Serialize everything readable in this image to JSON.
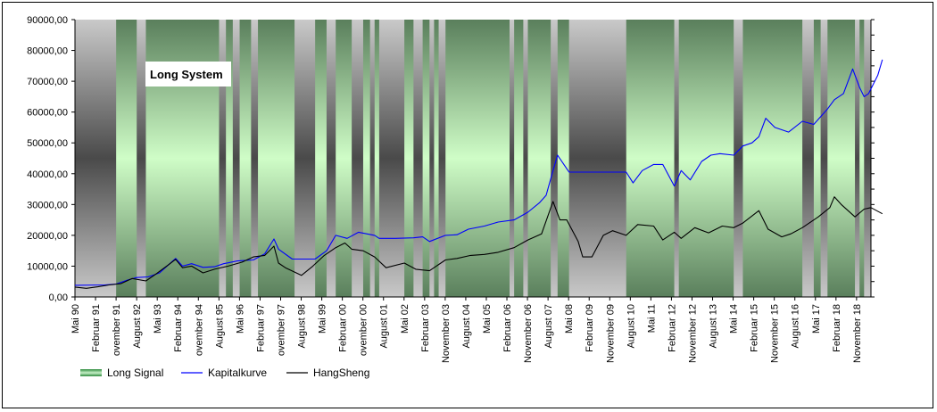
{
  "chart_data": {
    "type": "line",
    "title": "Long System",
    "ylim": [
      0,
      90000
    ],
    "y_ticks": [
      "0,00",
      "10000,00",
      "20000,00",
      "30000,00",
      "40000,00",
      "50000,00",
      "60000,00",
      "70000,00",
      "80000,00",
      "90000,00"
    ],
    "x_range": [
      "1990-05",
      "2019-05"
    ],
    "x_tick_labels": [
      "Mai 90",
      "Februar 91",
      "ovember 91",
      "August 92",
      "Mai 93",
      "Februar 94",
      "ovember 94",
      "August 95",
      "Mai 96",
      "Februar 97",
      "ovember 97",
      "August 98",
      "Mai 99",
      "Februar 00",
      "ovember 00",
      "August 01",
      "Mai 02",
      "Februar 03",
      "November 03",
      "August 04",
      "Mai 05",
      "Februar 06",
      "November 06",
      "August 07",
      "Mai 08",
      "Februar 09",
      "November 09",
      "August 10",
      "Mai 11",
      "Februar 12",
      "November 12",
      "August 13",
      "Mai 14",
      "Februar 15",
      "November 15",
      "August 16",
      "Mai 17",
      "Februar 18",
      "November 18"
    ],
    "legend": [
      "Long Signal",
      "Kapitalkurve",
      "HangSheng"
    ],
    "legend_position": "bottom-left",
    "colors": {
      "kapital": "#0000FF",
      "hang": "#000000",
      "signal": "#5fa86a"
    },
    "off_periods": [
      [
        "1990-05",
        "1991-11"
      ],
      [
        "1992-08",
        "1992-12"
      ],
      [
        "1995-08",
        "1995-11"
      ],
      [
        "1996-02",
        "1996-05"
      ],
      [
        "1996-10",
        "1997-01"
      ],
      [
        "1998-05",
        "1999-02"
      ],
      [
        "1999-07",
        "1999-11"
      ],
      [
        "2000-06",
        "2000-11"
      ],
      [
        "2001-02",
        "2001-04"
      ],
      [
        "2001-06",
        "2002-05"
      ],
      [
        "2002-09",
        "2003-01"
      ],
      [
        "2003-04",
        "2003-06"
      ],
      [
        "2003-08",
        "2003-11"
      ],
      [
        "2006-03",
        "2006-05"
      ],
      [
        "2006-09",
        "2006-11"
      ],
      [
        "2007-09",
        "2007-12"
      ],
      [
        "2008-05",
        "2010-06"
      ],
      [
        "2012-03",
        "2012-05"
      ],
      [
        "2014-05",
        "2014-09"
      ],
      [
        "2016-11",
        "2017-04"
      ],
      [
        "2017-07",
        "2017-10"
      ],
      [
        "2018-10",
        "2018-12"
      ],
      [
        "2019-02",
        "2019-05"
      ]
    ],
    "series": [
      {
        "name": "Kapitalkurve",
        "points": [
          [
            "1990-05",
            3800
          ],
          [
            "1991-06",
            3900
          ],
          [
            "1991-11",
            4200
          ],
          [
            "1992-04",
            5500
          ],
          [
            "1992-08",
            6300
          ],
          [
            "1993-01",
            6500
          ],
          [
            "1993-06",
            7800
          ],
          [
            "1993-10",
            10500
          ],
          [
            "1994-01",
            12500
          ],
          [
            "1994-04",
            10000
          ],
          [
            "1994-08",
            10800
          ],
          [
            "1995-01",
            9600
          ],
          [
            "1995-06",
            9800
          ],
          [
            "1995-10",
            10800
          ],
          [
            "1996-04",
            11700
          ],
          [
            "1996-11",
            12000
          ],
          [
            "1997-04",
            14000
          ],
          [
            "1997-08",
            18800
          ],
          [
            "1997-10",
            15500
          ],
          [
            "1998-04",
            12300
          ],
          [
            "1999-02",
            12300
          ],
          [
            "1999-07",
            15000
          ],
          [
            "1999-11",
            20000
          ],
          [
            "2000-04",
            19000
          ],
          [
            "2000-09",
            21000
          ],
          [
            "2001-04",
            20000
          ],
          [
            "2001-06",
            19000
          ],
          [
            "2002-01",
            19000
          ],
          [
            "2002-09",
            19200
          ],
          [
            "2003-01",
            19500
          ],
          [
            "2003-04",
            18000
          ],
          [
            "2003-11",
            20000
          ],
          [
            "2004-04",
            20200
          ],
          [
            "2004-09",
            22000
          ],
          [
            "2005-04",
            23000
          ],
          [
            "2005-10",
            24300
          ],
          [
            "2006-05",
            25000
          ],
          [
            "2006-11",
            27500
          ],
          [
            "2007-04",
            30500
          ],
          [
            "2007-07",
            33000
          ],
          [
            "2007-10",
            41000
          ],
          [
            "2007-12",
            46000
          ],
          [
            "2008-05",
            40500
          ],
          [
            "2010-06",
            40500
          ],
          [
            "2010-09",
            37000
          ],
          [
            "2011-01",
            41000
          ],
          [
            "2011-06",
            43000
          ],
          [
            "2011-10",
            43000
          ],
          [
            "2012-03",
            36000
          ],
          [
            "2012-06",
            41000
          ],
          [
            "2012-10",
            38000
          ],
          [
            "2013-03",
            44000
          ],
          [
            "2013-07",
            46000
          ],
          [
            "2013-11",
            46500
          ],
          [
            "2014-05",
            46000
          ],
          [
            "2014-09",
            49000
          ],
          [
            "2015-01",
            50000
          ],
          [
            "2015-04",
            52000
          ],
          [
            "2015-07",
            58000
          ],
          [
            "2015-11",
            55000
          ],
          [
            "2016-05",
            53500
          ],
          [
            "2016-11",
            57000
          ],
          [
            "2017-04",
            56000
          ],
          [
            "2017-10",
            61000
          ],
          [
            "2018-01",
            64000
          ],
          [
            "2018-05",
            66000
          ],
          [
            "2018-09",
            74000
          ],
          [
            "2018-12",
            68000
          ],
          [
            "2019-02",
            65000
          ],
          [
            "2019-04",
            66000
          ],
          [
            "2019-08",
            72000
          ],
          [
            "2019-10",
            77000
          ]
        ]
      },
      {
        "name": "HangSheng",
        "points": [
          [
            "1990-05",
            3200
          ],
          [
            "1990-10",
            2800
          ],
          [
            "1991-03",
            3300
          ],
          [
            "1991-08",
            3900
          ],
          [
            "1992-01",
            4300
          ],
          [
            "1992-06",
            6000
          ],
          [
            "1992-12",
            5200
          ],
          [
            "1993-04",
            7200
          ],
          [
            "1993-10",
            10500
          ],
          [
            "1994-01",
            12200
          ],
          [
            "1994-04",
            9500
          ],
          [
            "1994-08",
            10000
          ],
          [
            "1995-01",
            7800
          ],
          [
            "1995-06",
            9000
          ],
          [
            "1995-12",
            10000
          ],
          [
            "1996-06",
            11300
          ],
          [
            "1996-11",
            13000
          ],
          [
            "1997-04",
            13500
          ],
          [
            "1997-08",
            16500
          ],
          [
            "1997-10",
            11000
          ],
          [
            "1998-01",
            9500
          ],
          [
            "1998-08",
            7000
          ],
          [
            "1999-01",
            10000
          ],
          [
            "1999-06",
            13500
          ],
          [
            "1999-11",
            16000
          ],
          [
            "2000-03",
            17500
          ],
          [
            "2000-06",
            15500
          ],
          [
            "2000-11",
            15000
          ],
          [
            "2001-04",
            13000
          ],
          [
            "2001-09",
            9500
          ],
          [
            "2002-05",
            11000
          ],
          [
            "2002-10",
            9000
          ],
          [
            "2003-04",
            8500
          ],
          [
            "2003-11",
            12000
          ],
          [
            "2004-04",
            12500
          ],
          [
            "2004-10",
            13500
          ],
          [
            "2005-04",
            13800
          ],
          [
            "2005-10",
            14500
          ],
          [
            "2006-05",
            16000
          ],
          [
            "2006-11",
            18500
          ],
          [
            "2007-05",
            20500
          ],
          [
            "2007-10",
            31000
          ],
          [
            "2008-01",
            25000
          ],
          [
            "2008-04",
            25000
          ],
          [
            "2008-09",
            18000
          ],
          [
            "2008-11",
            13000
          ],
          [
            "2009-03",
            13000
          ],
          [
            "2009-08",
            20000
          ],
          [
            "2009-12",
            21500
          ],
          [
            "2010-06",
            20000
          ],
          [
            "2010-11",
            23500
          ],
          [
            "2011-06",
            23000
          ],
          [
            "2011-10",
            18500
          ],
          [
            "2012-03",
            21000
          ],
          [
            "2012-06",
            19000
          ],
          [
            "2012-12",
            22500
          ],
          [
            "2013-06",
            20800
          ],
          [
            "2013-12",
            23000
          ],
          [
            "2014-05",
            22500
          ],
          [
            "2014-09",
            24000
          ],
          [
            "2015-04",
            28000
          ],
          [
            "2015-08",
            22000
          ],
          [
            "2016-02",
            19500
          ],
          [
            "2016-06",
            20500
          ],
          [
            "2016-11",
            22500
          ],
          [
            "2017-06",
            26000
          ],
          [
            "2017-11",
            29000
          ],
          [
            "2018-01",
            32500
          ],
          [
            "2018-04",
            30000
          ],
          [
            "2018-10",
            26000
          ],
          [
            "2019-02",
            28500
          ],
          [
            "2019-05",
            29000
          ],
          [
            "2019-10",
            27000
          ]
        ]
      }
    ]
  }
}
